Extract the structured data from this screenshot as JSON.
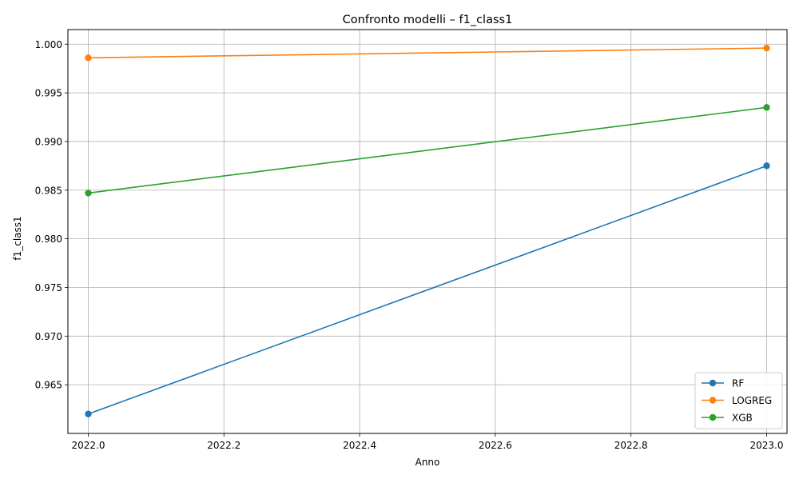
{
  "chart_data": {
    "type": "line",
    "title": "Confronto modelli – f1_class1",
    "xlabel": "Anno",
    "ylabel": "f1_class1",
    "xlim": [
      2021.97,
      2023.03
    ],
    "ylim": [
      0.96,
      1.0015
    ],
    "x_ticks": [
      2022.0,
      2022.2,
      2022.4,
      2022.6,
      2022.8,
      2023.0
    ],
    "x_tick_labels": [
      "2022.0",
      "2022.2",
      "2022.4",
      "2022.6",
      "2022.8",
      "2023.0"
    ],
    "y_ticks": [
      0.965,
      0.97,
      0.975,
      0.98,
      0.985,
      0.99,
      0.995,
      1.0
    ],
    "y_tick_labels": [
      "0.965",
      "0.970",
      "0.975",
      "0.980",
      "0.985",
      "0.990",
      "0.995",
      "1.000"
    ],
    "grid": true,
    "legend_position": "bottom-right",
    "x": [
      2022,
      2023
    ],
    "series": [
      {
        "name": "RF",
        "color": "#1f77b4",
        "values": [
          0.962,
          0.9875
        ]
      },
      {
        "name": "LOGREG",
        "color": "#ff7f0e",
        "values": [
          0.9986,
          0.9996
        ]
      },
      {
        "name": "XGB",
        "color": "#2ca02c",
        "values": [
          0.9847,
          0.9935
        ]
      }
    ]
  }
}
